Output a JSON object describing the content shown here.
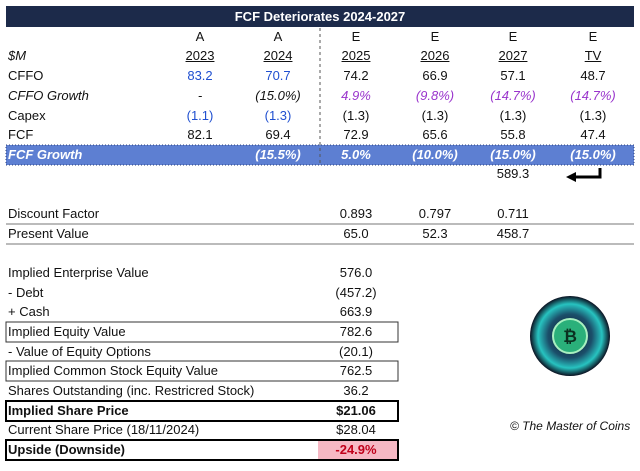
{
  "title": "FCF Deteriorates 2024-2027",
  "header": {
    "unit": "$M",
    "types": [
      "A",
      "A",
      "E",
      "E",
      "E",
      "E"
    ],
    "years": [
      "2023",
      "2024",
      "2025",
      "2026",
      "2027",
      "TV"
    ]
  },
  "rows": [
    {
      "label": "CFFO",
      "values": [
        "83.2",
        "70.7",
        "74.2",
        "66.9",
        "57.1",
        "48.7"
      ]
    },
    {
      "label": "CFFO Growth",
      "values": [
        "-",
        "(15.0%)",
        "4.9%",
        "(9.8%)",
        "(14.7%)",
        "(14.7%)"
      ]
    },
    {
      "label": "Capex",
      "values": [
        "(1.1)",
        "(1.3)",
        "(1.3)",
        "(1.3)",
        "(1.3)",
        "(1.3)"
      ]
    },
    {
      "label": "FCF",
      "values": [
        "82.1",
        "69.4",
        "72.9",
        "65.6",
        "55.8",
        "47.4"
      ]
    },
    {
      "label": "FCF Growth",
      "values": [
        "",
        "(15.5%)",
        "5.0%",
        "(10.0%)",
        "(15.0%)",
        "(15.0%)"
      ]
    }
  ],
  "terminal_value": "589.3",
  "discount": [
    {
      "label": "Discount Factor",
      "values": [
        "0.893",
        "0.797",
        "0.711"
      ]
    },
    {
      "label": "Present Value",
      "values": [
        "65.0",
        "52.3",
        "458.7"
      ]
    }
  ],
  "valuation": [
    {
      "label": "Implied Enterprise Value",
      "value": "576.0"
    },
    {
      "label": "- Debt",
      "value": "(457.2)"
    },
    {
      "label": "+ Cash",
      "value": "663.9"
    },
    {
      "label": "Implied Equity Value",
      "value": "782.6"
    },
    {
      "label": "- Value of Equity Options",
      "value": "(20.1)"
    },
    {
      "label": "Implied Common Stock Equity Value",
      "value": "762.5"
    },
    {
      "label": "Shares Outstanding (inc. Restricred Stock)",
      "value": "36.2"
    },
    {
      "label": "Implied Share Price",
      "value": "$21.06"
    },
    {
      "label": "Current Share Price (18/11/2024)",
      "value": "$28.04"
    },
    {
      "label": "Upside (Downside)",
      "value": "-24.9%"
    }
  ],
  "credit": "© The Master of Coins"
}
